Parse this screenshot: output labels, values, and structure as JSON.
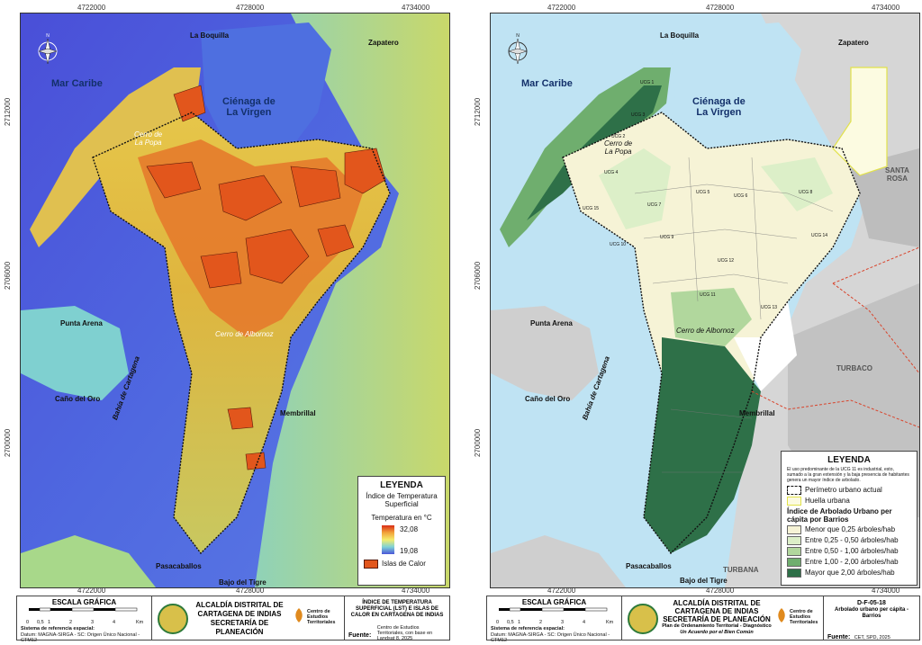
{
  "coords": {
    "x_ticks": [
      "4722000",
      "4728000",
      "4734000"
    ],
    "y_ticks": [
      "2712000",
      "2706000",
      "2700000"
    ]
  },
  "left_map": {
    "labels": {
      "la_boquilla": "La Boquilla",
      "zapatero": "Zapatero",
      "mar_caribe": "Mar Caribe",
      "cienaga": "Ciénaga de\nLa Virgen",
      "cerro_popa": "Cerro de\nLa Popa",
      "punta_arena": "Punta Arena",
      "bahia": "Bahía de Cartagena",
      "cerro_albornoz": "Cerro de Albornoz",
      "cano_del_oro": "Caño del Oro",
      "membrillal": "Membrillal",
      "pasacaballos": "Pasacaballos",
      "bajo_del_tigre": "Bajo del Tigre"
    },
    "legend": {
      "title": "LEYENDA",
      "subtitle": "Índice de Temperatura Superficial",
      "temp_label": "Temperatura en °C",
      "max": "32,08",
      "min": "19,08",
      "heat_islands": "Islas de Calor",
      "heat_color": "#e2561c"
    },
    "footer": {
      "scale_title": "ESCALA GRÁFICA",
      "scale_ticks": [
        "0",
        "0,5",
        "1",
        "2",
        "3",
        "4"
      ],
      "scale_unit": "Km",
      "ref_title": "Sistema de referencia espacial:",
      "ref_text": "Datum: MAGNA-SIRGA - SC: Origen Único Nacional - CTM12",
      "org_line1": "ALCALDÍA DISTRITAL DE",
      "org_line2": "CARTAGENA DE INDIAS",
      "org_line3": "SECRETARÍA DE PLANEACIÓN",
      "cet_name": "Centro de Estudios Territoriales",
      "map_title": "ÍNDICE DE TEMPERATURA SUPERFICIAL (LST) E ISLAS DE CALOR EN CARTAGENA DE INDIAS",
      "source_label": "Fuente:",
      "source_text": "Centro de Estudios Territoriales, con base en Landsat 8, 2025"
    }
  },
  "right_map": {
    "labels": {
      "la_boquilla": "La Boquilla",
      "zapatero": "Zapatero",
      "mar_caribe": "Mar Caribe",
      "cienaga": "Ciénaga de\nLa Virgen",
      "cerro_popa": "Cerro de\nLa Popa",
      "punta_arena": "Punta Arena",
      "bahia": "Bahía de Cartagena",
      "cerro_albornoz": "Cerro de Albornoz",
      "cano_del_oro": "Caño del Oro",
      "membrillal": "Membrillal",
      "pasacaballos": "Pasacaballos",
      "bajo_del_tigre": "Bajo del Tigre",
      "santa_rosa": "SANTA\nROSA",
      "turbaco": "TURBACO",
      "turbana": "TURBANA",
      "ucg": [
        "UCG 1",
        "UCG 2",
        "UCG 3",
        "UCG 4",
        "UCG 5",
        "UCG 6",
        "UCG 7",
        "UCG 8",
        "UCG 9",
        "UCG 10",
        "UCG 11",
        "UCG 12",
        "UCG 13",
        "UCG 14",
        "UCG 15"
      ]
    },
    "legend": {
      "title": "LEYENDA",
      "note": "El uso predominante de la UCG 11 es industrial, esto, sumado a la gran extensión y la baja presencia de habitantes genera un mayor índice de arbolado.",
      "perimeter": "Perímetro urbano actual",
      "footprint": "Huella urbana",
      "index_title": "Índice de Arbolado Urbano per cápita por Barrios",
      "classes": [
        {
          "label": "Menor que 0,25 árboles/hab",
          "color": "#f6f3d6"
        },
        {
          "label": "Entre 0,25 - 0,50 árboles/hab",
          "color": "#dcefc8"
        },
        {
          "label": "Entre 0,50 - 1,00 árboles/hab",
          "color": "#b1d79d"
        },
        {
          "label": "Entre 1,00 - 2,00 árboles/hab",
          "color": "#6fae6e"
        },
        {
          "label": "Mayor que 2,00 árboles/hab",
          "color": "#2e7048"
        }
      ]
    },
    "footer": {
      "scale_title": "ESCALA GRÁFICA",
      "scale_ticks": [
        "0",
        "0,5",
        "1",
        "2",
        "3",
        "4"
      ],
      "scale_unit": "Km",
      "ref_title": "Sistema de referencia espacial:",
      "ref_text": "Datum: MAGNA-SIRGA - SC: Origen Único Nacional - CTM12",
      "org_line1": "ALCALDÍA DISTRITAL DE",
      "org_line2": "CARTAGENA DE INDIAS",
      "org_line3": "SECRETARÍA DE PLANEACIÓN",
      "plan_line1": "Plan de Ordenamiento Territorial - Diagnóstico",
      "plan_line2": "Un Acuerdo por el Bien Común",
      "cet_name": "Centro de Estudios Territoriales",
      "map_code": "D-F-05-18",
      "map_title": "Arbolado urbano per cápita - Barrios",
      "source_label": "Fuente:",
      "source_text": "CET, SPD, 2025"
    }
  }
}
